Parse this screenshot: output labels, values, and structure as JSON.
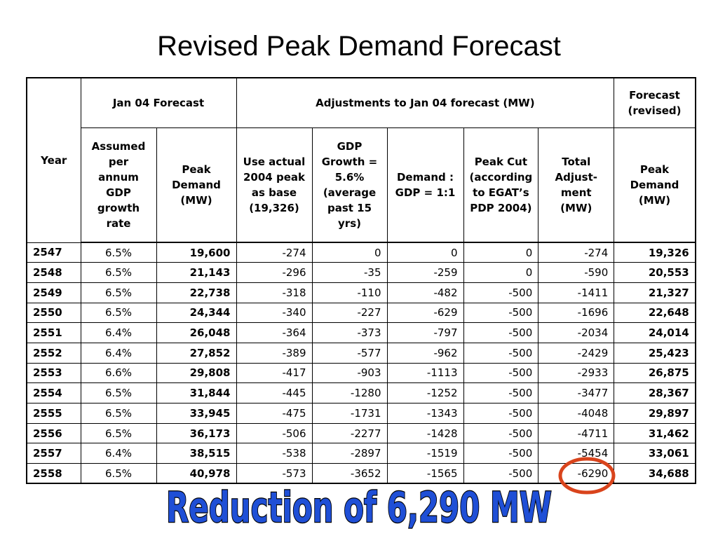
{
  "title": "Revised Peak Demand Forecast",
  "table": {
    "year_header": "Year",
    "group_jan04": "Jan 04 Forecast",
    "group_adjust": "Adjustments to Jan 04 forecast (MW)",
    "group_revised": "Forecast (revised)",
    "columns": {
      "gdp_rate": "Assumed per annum GDP growth rate",
      "peak_jan04": "Peak Demand (MW)",
      "use_actual": "Use actual 2004 peak as base (19,326)",
      "gdp_growth": "GDP Growth = 5.6% (average past 15 yrs)",
      "demand_gdp": "Demand : GDP = 1:1",
      "peak_cut": "Peak Cut (according to EGAT’s PDP 2004)",
      "total_adj": "Total Adjust-ment (MW)",
      "peak_revised": "Peak Demand (MW)"
    },
    "rows": [
      {
        "year": "2547",
        "gdp": "6.5%",
        "peak": "19,600",
        "actual": "-274",
        "growth": "0",
        "demand": "0",
        "cut": "0",
        "total": "-274",
        "revised": "19,326"
      },
      {
        "year": "2548",
        "gdp": "6.5%",
        "peak": "21,143",
        "actual": "-296",
        "growth": "-35",
        "demand": "-259",
        "cut": "0",
        "total": "-590",
        "revised": "20,553"
      },
      {
        "year": "2549",
        "gdp": "6.5%",
        "peak": "22,738",
        "actual": "-318",
        "growth": "-110",
        "demand": "-482",
        "cut": "-500",
        "total": "-1411",
        "revised": "21,327"
      },
      {
        "year": "2550",
        "gdp": "6.5%",
        "peak": "24,344",
        "actual": "-340",
        "growth": "-227",
        "demand": "-629",
        "cut": "-500",
        "total": "-1696",
        "revised": "22,648"
      },
      {
        "year": "2551",
        "gdp": "6.4%",
        "peak": "26,048",
        "actual": "-364",
        "growth": "-373",
        "demand": "-797",
        "cut": "-500",
        "total": "-2034",
        "revised": "24,014"
      },
      {
        "year": "2552",
        "gdp": "6.4%",
        "peak": "27,852",
        "actual": "-389",
        "growth": "-577",
        "demand": "-962",
        "cut": "-500",
        "total": "-2429",
        "revised": "25,423"
      },
      {
        "year": "2553",
        "gdp": "6.6%",
        "peak": "29,808",
        "actual": "-417",
        "growth": "-903",
        "demand": "-1113",
        "cut": "-500",
        "total": "-2933",
        "revised": "26,875"
      },
      {
        "year": "2554",
        "gdp": "6.5%",
        "peak": "31,844",
        "actual": "-445",
        "growth": "-1280",
        "demand": "-1252",
        "cut": "-500",
        "total": "-3477",
        "revised": "28,367"
      },
      {
        "year": "2555",
        "gdp": "6.5%",
        "peak": "33,945",
        "actual": "-475",
        "growth": "-1731",
        "demand": "-1343",
        "cut": "-500",
        "total": "-4048",
        "revised": "29,897"
      },
      {
        "year": "2556",
        "gdp": "6.5%",
        "peak": "36,173",
        "actual": "-506",
        "growth": "-2277",
        "demand": "-1428",
        "cut": "-500",
        "total": "-4711",
        "revised": "31,462"
      },
      {
        "year": "2557",
        "gdp": "6.4%",
        "peak": "38,515",
        "actual": "-538",
        "growth": "-2897",
        "demand": "-1519",
        "cut": "-500",
        "total": "-5454",
        "revised": "33,061"
      },
      {
        "year": "2558",
        "gdp": "6.5%",
        "peak": "40,978",
        "actual": "-573",
        "growth": "-3652",
        "demand": "-1565",
        "cut": "-500",
        "total": "-6290",
        "revised": "34,688"
      }
    ]
  },
  "callout": {
    "text": "Reduction of 6,290 MW",
    "fill_color": "#1f4fd6",
    "outline_color": "#000000",
    "circle_color": "#d9441c"
  }
}
